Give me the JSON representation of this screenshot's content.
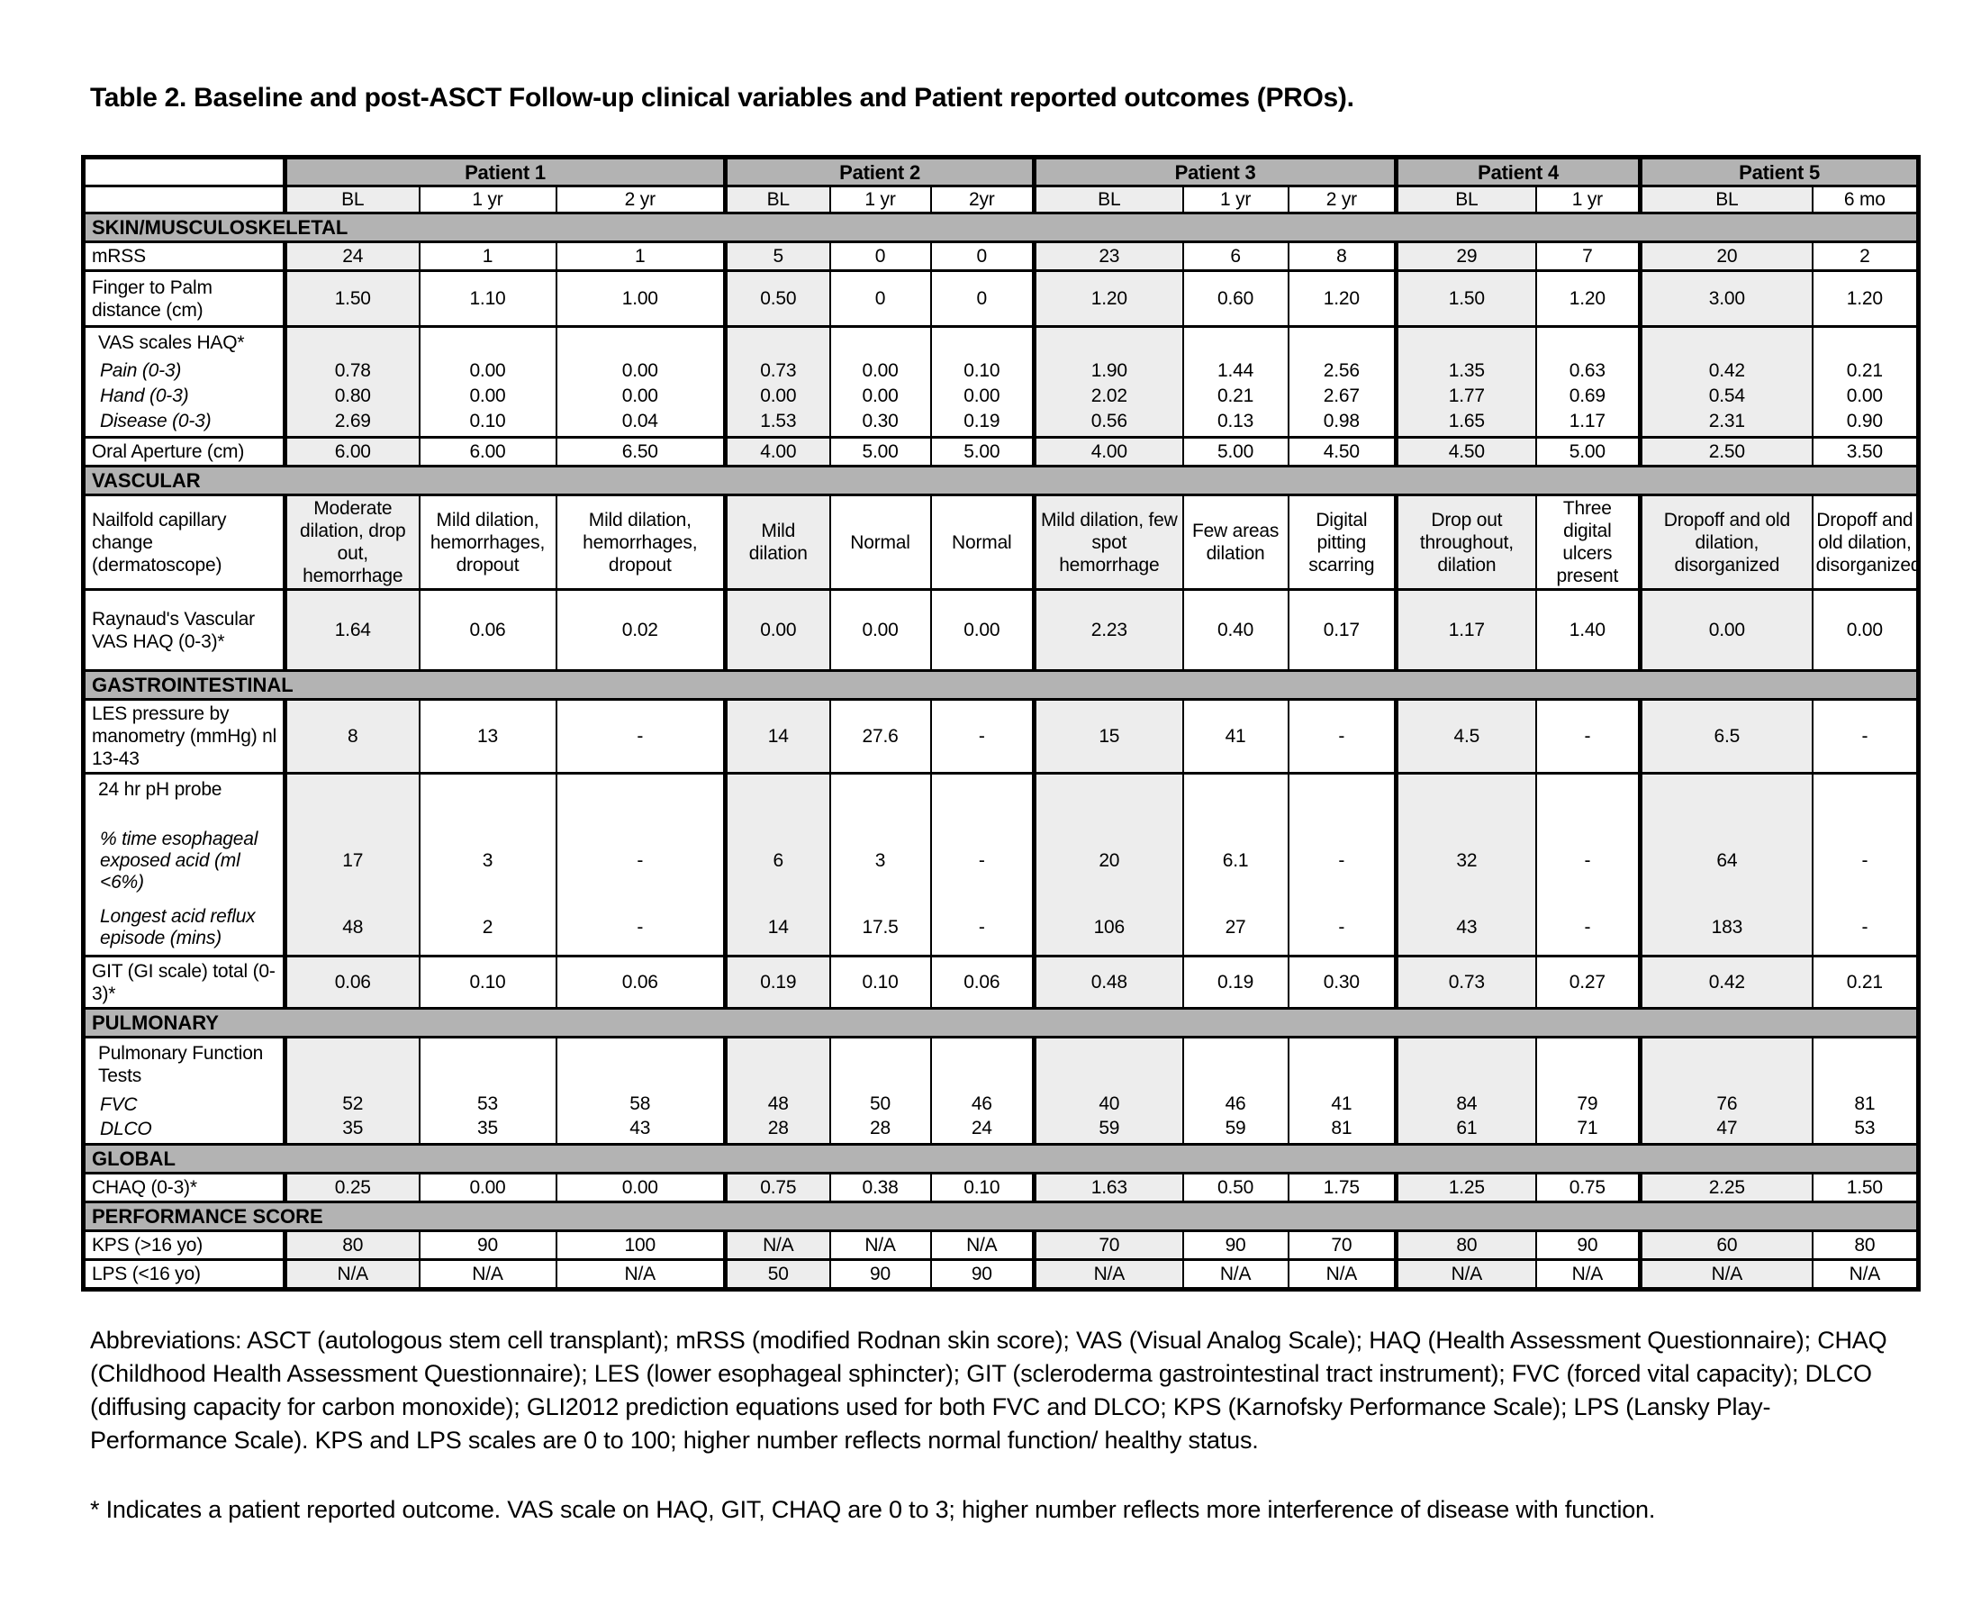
{
  "page_title": "Table 2. Baseline and post-ASCT Follow-up clinical variables and Patient reported outcomes (PROs).",
  "table": {
    "patients": [
      {
        "name": "Patient 1",
        "cols": [
          "BL",
          "1 yr",
          "2 yr"
        ]
      },
      {
        "name": "Patient 2",
        "cols": [
          "BL",
          "1 yr",
          "2yr"
        ]
      },
      {
        "name": "Patient 3",
        "cols": [
          "BL",
          "1 yr",
          "2 yr"
        ]
      },
      {
        "name": "Patient 4",
        "cols": [
          "BL",
          "1 yr"
        ]
      },
      {
        "name": "Patient 5",
        "cols": [
          "BL",
          "6 mo"
        ]
      }
    ],
    "sections": [
      {
        "header": "SKIN/MUSCULOSKELETAL",
        "rows": [
          {
            "key": "mrss",
            "label": "mRSS",
            "values": [
              "24",
              "1",
              "1",
              "5",
              "0",
              "0",
              "23",
              "6",
              "8",
              "29",
              "7",
              "20",
              "2"
            ]
          },
          {
            "key": "finger",
            "label": "Finger to Palm distance (cm)",
            "values": [
              "1.50",
              "1.10",
              "1.00",
              "0.50",
              "0",
              "0",
              "1.20",
              "0.60",
              "1.20",
              "1.50",
              "1.20",
              "3.00",
              "1.20"
            ]
          },
          {
            "key": "vas",
            "label": "VAS scales HAQ*",
            "sub": [
              {
                "label": "Pain (0-3)",
                "values": [
                  "0.78",
                  "0.00",
                  "0.00",
                  "0.73",
                  "0.00",
                  "0.10",
                  "1.90",
                  "1.44",
                  "2.56",
                  "1.35",
                  "0.63",
                  "0.42",
                  "0.21"
                ]
              },
              {
                "label": "Hand (0-3)",
                "values": [
                  "0.80",
                  "0.00",
                  "0.00",
                  "0.00",
                  "0.00",
                  "0.00",
                  "2.02",
                  "0.21",
                  "2.67",
                  "1.77",
                  "0.69",
                  "0.54",
                  "0.00"
                ]
              },
              {
                "label": "Disease (0-3)",
                "values": [
                  "2.69",
                  "0.10",
                  "0.04",
                  "1.53",
                  "0.30",
                  "0.19",
                  "0.56",
                  "0.13",
                  "0.98",
                  "1.65",
                  "1.17",
                  "2.31",
                  "0.90"
                ]
              }
            ]
          },
          {
            "key": "oral",
            "label": "Oral Aperture (cm)",
            "values": [
              "6.00",
              "6.00",
              "6.50",
              "4.00",
              "5.00",
              "5.00",
              "4.00",
              "5.00",
              "4.50",
              "4.50",
              "5.00",
              "2.50",
              "3.50"
            ]
          }
        ]
      },
      {
        "header": "VASCULAR",
        "rows": [
          {
            "key": "nailfold",
            "label": "Nailfold capillary change (dermatoscope)",
            "values": [
              "Moderate dilation, drop out, hemorrhage",
              "Mild dilation, hemorrhages, dropout",
              "Mild dilation, hemorrhages, dropout",
              "Mild dilation",
              "Normal",
              "Normal",
              "Mild dilation, few spot hemorrhage",
              "Few areas dilation",
              "Digital pitting scarring",
              "Drop out throughout, dilation",
              "Three digital ulcers present",
              "Dropoff and old dilation, disorganized",
              "Dropoff and old dilation, disorganized"
            ]
          },
          {
            "key": "raynaud",
            "label": "Raynaud's Vascular VAS HAQ (0-3)*",
            "values": [
              "1.64",
              "0.06",
              "0.02",
              "0.00",
              "0.00",
              "0.00",
              "2.23",
              "0.40",
              "0.17",
              "1.17",
              "1.40",
              "0.00",
              "0.00"
            ]
          }
        ]
      },
      {
        "header": "GASTROINTESTINAL",
        "rows": [
          {
            "key": "les",
            "label": "LES pressure by manometry (mmHg) nl 13-43",
            "values": [
              "8",
              "13",
              "-",
              "14",
              "27.6",
              "-",
              "15",
              "41",
              "-",
              "4.5",
              "-",
              "6.5",
              "-"
            ]
          },
          {
            "key": "ph",
            "label": "24 hr pH probe",
            "sub": [
              {
                "label": "% time esophageal exposed acid (ml <6%)",
                "values": [
                  "17",
                  "3",
                  "-",
                  "6",
                  "3",
                  "-",
                  "20",
                  "6.1",
                  "-",
                  "32",
                  "-",
                  "64",
                  "-"
                ]
              },
              {
                "label": "Longest acid reflux episode (mins)",
                "values": [
                  "48",
                  "2",
                  "-",
                  "14",
                  "17.5",
                  "-",
                  "106",
                  "27",
                  "-",
                  "43",
                  "-",
                  "183",
                  "-"
                ]
              }
            ]
          },
          {
            "key": "git",
            "label": "GIT (GI scale) total (0-3)*",
            "values": [
              "0.06",
              "0.10",
              "0.06",
              "0.19",
              "0.10",
              "0.06",
              "0.48",
              "0.19",
              "0.30",
              "0.73",
              "0.27",
              "0.42",
              "0.21"
            ]
          }
        ]
      },
      {
        "header": "PULMONARY",
        "rows": [
          {
            "key": "pft",
            "label": "Pulmonary Function Tests",
            "sub": [
              {
                "label": "FVC",
                "values": [
                  "52",
                  "53",
                  "58",
                  "48",
                  "50",
                  "46",
                  "40",
                  "46",
                  "41",
                  "84",
                  "79",
                  "76",
                  "81"
                ]
              },
              {
                "label": "DLCO",
                "values": [
                  "35",
                  "35",
                  "43",
                  "28",
                  "28",
                  "24",
                  "59",
                  "59",
                  "81",
                  "61",
                  "71",
                  "47",
                  "53"
                ]
              }
            ]
          }
        ]
      },
      {
        "header": "GLOBAL",
        "rows": [
          {
            "key": "chaq",
            "label": "CHAQ (0-3)*",
            "values": [
              "0.25",
              "0.00",
              "0.00",
              "0.75",
              "0.38",
              "0.10",
              "1.63",
              "0.50",
              "1.75",
              "1.25",
              "0.75",
              "2.25",
              "1.50"
            ]
          }
        ]
      },
      {
        "header": "PERFORMANCE SCORE",
        "rows": [
          {
            "key": "kps",
            "label": "KPS (>16 yo)",
            "values": [
              "80",
              "90",
              "100",
              "N/A",
              "N/A",
              "N/A",
              "70",
              "90",
              "70",
              "80",
              "90",
              "60",
              "80"
            ]
          },
          {
            "key": "lps",
            "label": "LPS (<16 yo)",
            "values": [
              "N/A",
              "N/A",
              "N/A",
              "50",
              "90",
              "90",
              "N/A",
              "N/A",
              "N/A",
              "N/A",
              "N/A",
              "N/A",
              "N/A"
            ]
          }
        ]
      }
    ]
  },
  "footnotes": {
    "abbreviations": "Abbreviations: ASCT (autologous stem cell transplant); mRSS (modified Rodnan skin score); VAS (Visual Analog Scale); HAQ (Health Assessment Questionnaire); CHAQ (Childhood Health Assessment Questionnaire); LES (lower esophageal sphincter); GIT (scleroderma gastrointestinal tract instrument); FVC (forced vital capacity); DLCO (diffusing capacity for carbon monoxide); GLI2012 prediction equations used for both FVC and DLCO; KPS (Karnofsky Performance Scale); LPS (Lansky Play-Performance Scale). KPS and LPS scales are 0 to 100; higher number reflects normal function/ healthy status.",
    "asterisk": "* Indicates a patient reported outcome. VAS scale on HAQ, GIT, CHAQ are 0 to 3; higher number reflects more interference of disease with function."
  }
}
